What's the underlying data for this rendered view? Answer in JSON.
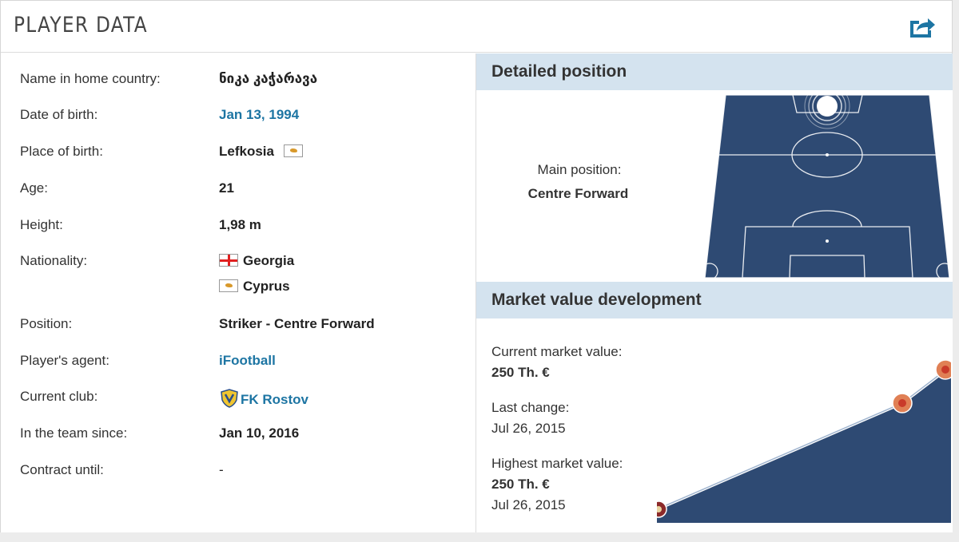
{
  "header": {
    "title": "PLAYER DATA",
    "share_icon": "share-icon"
  },
  "player": {
    "rows": [
      {
        "label": "Name in home country:",
        "value": "ნიკა კაჭარავა"
      },
      {
        "label": "Date of birth:",
        "value": "Jan 13, 1994"
      },
      {
        "label": "Place of birth:",
        "value": "Lefkosia"
      },
      {
        "label": "Age:",
        "value": "21"
      },
      {
        "label": "Height:",
        "value": "1,98 m"
      },
      {
        "label": "Nationality:",
        "value": "Georgia",
        "value2": "Cyprus"
      },
      {
        "label": "Position:",
        "value": "Striker - Centre Forward"
      },
      {
        "label": "Player's agent:",
        "value": "iFootball"
      },
      {
        "label": "Current club:",
        "value": "FK Rostov"
      },
      {
        "label": "In the team since:",
        "value": "Jan 10, 2016"
      },
      {
        "label": "Contract until:",
        "value": "-"
      }
    ]
  },
  "detailed_position": {
    "heading": "Detailed position",
    "main_label": "Main position:",
    "main_value": "Centre Forward"
  },
  "market_value": {
    "heading": "Market value development",
    "current_label": "Current market value:",
    "current_value": "250 Th. €",
    "last_change_label": "Last change:",
    "last_change_date": "Jul 26, 2015",
    "highest_label": "Highest market value:",
    "highest_value": "250 Th. €",
    "highest_date": "Jul 26, 2015"
  },
  "colors": {
    "pitch": "#2e4a73",
    "section_header": "#d4e3ef",
    "link": "#1d75a3"
  }
}
